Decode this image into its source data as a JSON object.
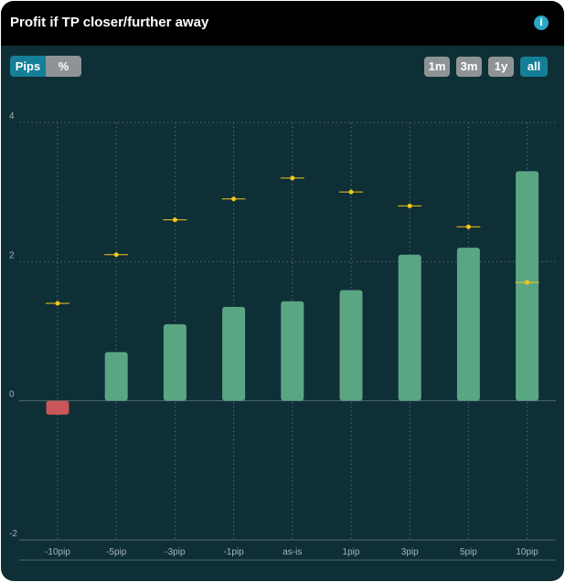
{
  "header": {
    "title": "Profit if TP closer/further away",
    "info_glyph": "i",
    "info_icon": "info-icon"
  },
  "units": {
    "options": [
      "Pips",
      "%"
    ],
    "selected": "Pips"
  },
  "periods": {
    "options": [
      "1m",
      "3m",
      "1y",
      "all"
    ],
    "selected": "all"
  },
  "colors": {
    "positive": "#5aa683",
    "negative": "#c9565a",
    "marker": "#f5c518",
    "accent": "#157f97"
  },
  "chart_data": {
    "type": "bar",
    "categories": [
      "-10pip",
      "-5pip",
      "-3pip",
      "-1pip",
      "as-is",
      "1pip",
      "3pip",
      "5pip",
      "10pip"
    ],
    "series": [
      {
        "values": [
          -0.2,
          0.7,
          1.1,
          1.35,
          1.43,
          1.59,
          2.1,
          2.2,
          3.3
        ]
      },
      {
        "type": "marker",
        "values": [
          1.4,
          2.1,
          2.6,
          2.9,
          3.2,
          3.0,
          2.8,
          2.5,
          1.7
        ]
      }
    ],
    "yticks": [
      -2,
      0,
      2,
      4
    ],
    "ylim": [
      -2,
      4
    ],
    "grid": true
  }
}
